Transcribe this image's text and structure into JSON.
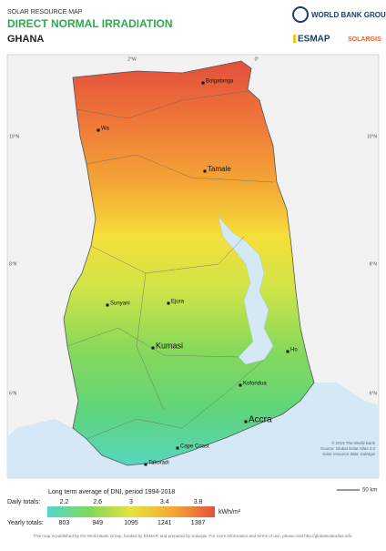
{
  "header": {
    "subtitle": "SOLAR RESOURCE MAP",
    "title": "DIRECT NORMAL IRRADIATION",
    "country": "GHANA"
  },
  "logos": {
    "world_bank": "WORLD BANK GROUP",
    "esmap": "ESMAP",
    "solargis": "SOLARGIS"
  },
  "graticule": {
    "longitudes": [
      "2°W",
      "0°"
    ],
    "latitudes": [
      "10°N",
      "8°N",
      "6°N"
    ]
  },
  "cities": [
    "Bolgatanga",
    "Wa",
    "Tamale",
    "Sunyani",
    "Ejura",
    "Kumasi",
    "Ho",
    "Koforidua",
    "Accra",
    "Cape Coast",
    "Takoradi"
  ],
  "credits": [
    "© 2019 The World Bank",
    "Source: Global Solar Atlas 2.0",
    "Solar resource data: Solargis"
  ],
  "scale": "50 km",
  "legend": {
    "title": "Long term average of DNI, period 1994-2018",
    "daily_label": "Daily totals:",
    "daily": [
      2.2,
      2.6,
      3.0,
      3.4,
      3.8
    ],
    "yearly_label": "Yearly totals:",
    "yearly": [
      803,
      949,
      1095,
      1241,
      1387
    ],
    "unit": "kWh/m²"
  },
  "footer": "This map is published by the World Bank Group, funded by ESMAP, and prepared by Solargis. For more information and terms of use, please visit http://globalsolaratlas.info."
}
